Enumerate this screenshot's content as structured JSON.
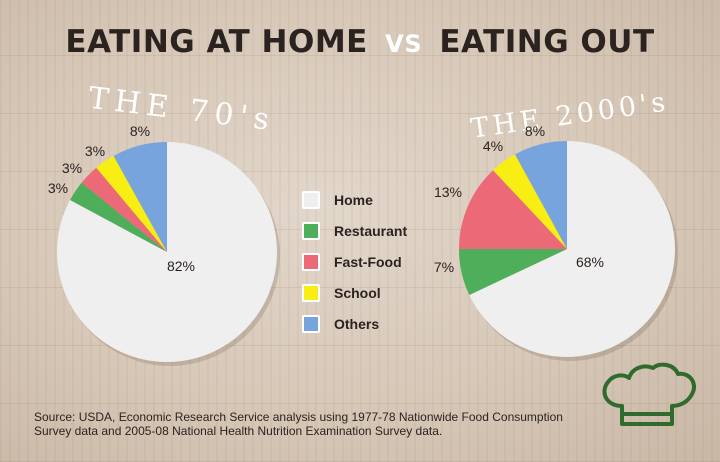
{
  "title": {
    "part1": "EATING AT HOME",
    "vs": "VS",
    "part2": "EATING OUT"
  },
  "source": "Source: USDA, Economic Research Service analysis using 1977-78 Nationwide Food Consumption Survey data and 2005-08 National Health Nutrition Examination Survey data.",
  "legend": [
    {
      "label": "Home",
      "color": "#f0efef"
    },
    {
      "label": "Restaurant",
      "color": "#4fae5a"
    },
    {
      "label": "Fast-Food",
      "color": "#ec6977"
    },
    {
      "label": "School",
      "color": "#f8ee13"
    },
    {
      "label": "Others",
      "color": "#78a4dd"
    }
  ],
  "chart_data": [
    {
      "type": "pie",
      "title": "THE 70's",
      "slices": [
        {
          "label": "Home",
          "value": 82,
          "display": "82%",
          "color": "#f0efef"
        },
        {
          "label": "Restaurant",
          "value": 3,
          "display": "3%",
          "color": "#4fae5a"
        },
        {
          "label": "Fast-Food",
          "value": 3,
          "display": "3%",
          "color": "#ec6977"
        },
        {
          "label": "School",
          "value": 3,
          "display": "3%",
          "color": "#f8ee13"
        },
        {
          "label": "Others",
          "value": 8,
          "display": "8%",
          "color": "#78a4dd"
        }
      ]
    },
    {
      "type": "pie",
      "title": "THE 2000's",
      "slices": [
        {
          "label": "Home",
          "value": 68,
          "display": "68%",
          "color": "#f0efef"
        },
        {
          "label": "Restaurant",
          "value": 7,
          "display": "7%",
          "color": "#4fae5a"
        },
        {
          "label": "Fast-Food",
          "value": 13,
          "display": "13%",
          "color": "#ec6977"
        },
        {
          "label": "School",
          "value": 4,
          "display": "4%",
          "color": "#f8ee13"
        },
        {
          "label": "Others",
          "value": 8,
          "display": "8%",
          "color": "#78a4dd"
        }
      ]
    }
  ]
}
